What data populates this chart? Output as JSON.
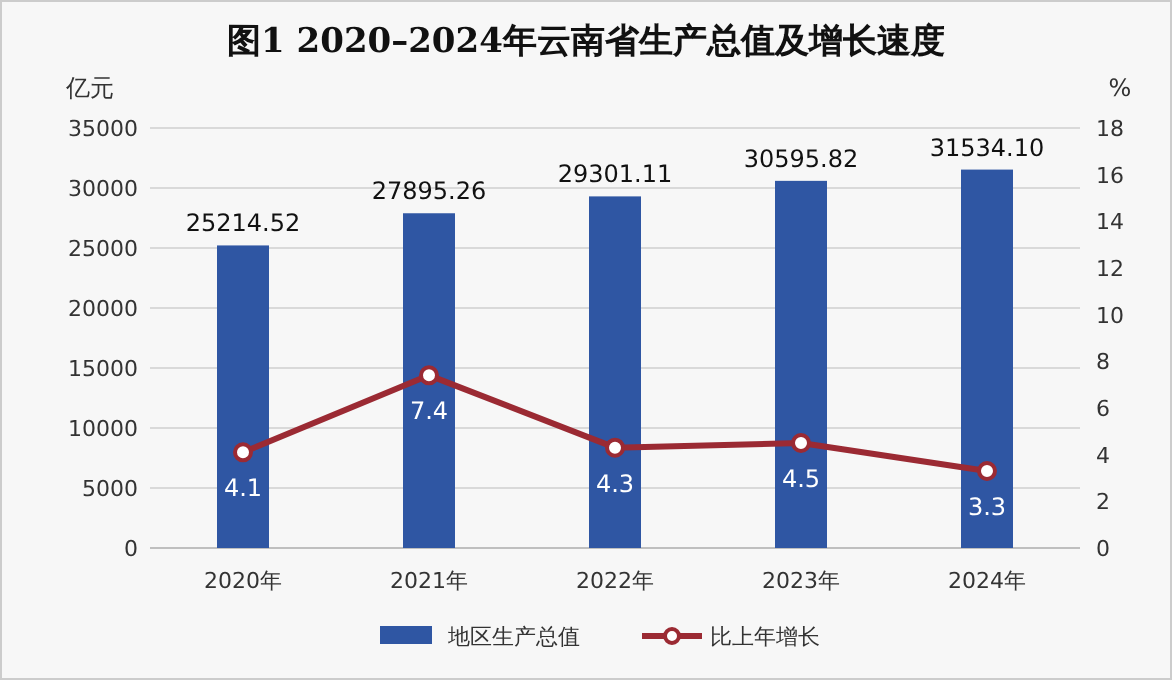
{
  "chart_data": {
    "type": "bar",
    "title": "图1 2020–2024年云南省生产总值及增长速度",
    "categories": [
      "2020年",
      "2021年",
      "2022年",
      "2023年",
      "2024年"
    ],
    "series": [
      {
        "name": "地区生产总值",
        "color": "#2f56a3",
        "values": [
          25214.52,
          27895.26,
          29301.11,
          30595.82,
          31534.1
        ],
        "value_labels": [
          "25214.52",
          "27895.26",
          "29301.11",
          "30595.82",
          "31534.10"
        ]
      },
      {
        "name": "比上年增长",
        "type": "line",
        "axis": "y2",
        "color": "#9b2a33",
        "values": [
          4.1,
          7.4,
          4.3,
          4.5,
          3.3
        ]
      }
    ],
    "ylabel": "亿元",
    "y2label": "%",
    "ylim": [
      0,
      35000
    ],
    "yticks": [
      0,
      5000,
      10000,
      15000,
      20000,
      25000,
      30000,
      35000
    ],
    "y2lim": [
      0,
      18
    ],
    "y2ticks": [
      0,
      2,
      4,
      6,
      8,
      10,
      12,
      14,
      16,
      18
    ],
    "grid": "y",
    "legend": "bottom",
    "marker": "circle",
    "data_labels": true
  }
}
